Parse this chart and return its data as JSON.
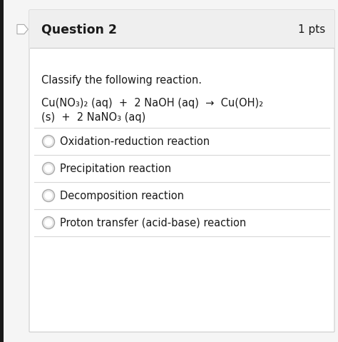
{
  "bg_outer": "#f5f5f5",
  "bg_inner": "#ffffff",
  "bg_header": "#efefef",
  "question_label": "Question 2",
  "pts_label": "1 pts",
  "instruction": "Classify the following reaction.",
  "reaction_line1": "Cu(NO₃)₂ (aq)  +  2 NaOH (aq)  →  Cu(OH)₂",
  "reaction_line2": "(s)  +  2 NaNO₃ (aq)",
  "options": [
    "Oxidation-reduction reaction",
    "Precipitation reaction",
    "Decomposition reaction",
    "Proton transfer (acid-base) reaction"
  ],
  "separator_color": "#d8d8d8",
  "text_color": "#1a1a1a",
  "radio_edge_color": "#aaaaaa",
  "radio_fill": "#e8e8e8",
  "left_bar_color": "#1a1a1a",
  "card_border_color": "#cccccc",
  "header_border_color": "#cccccc"
}
